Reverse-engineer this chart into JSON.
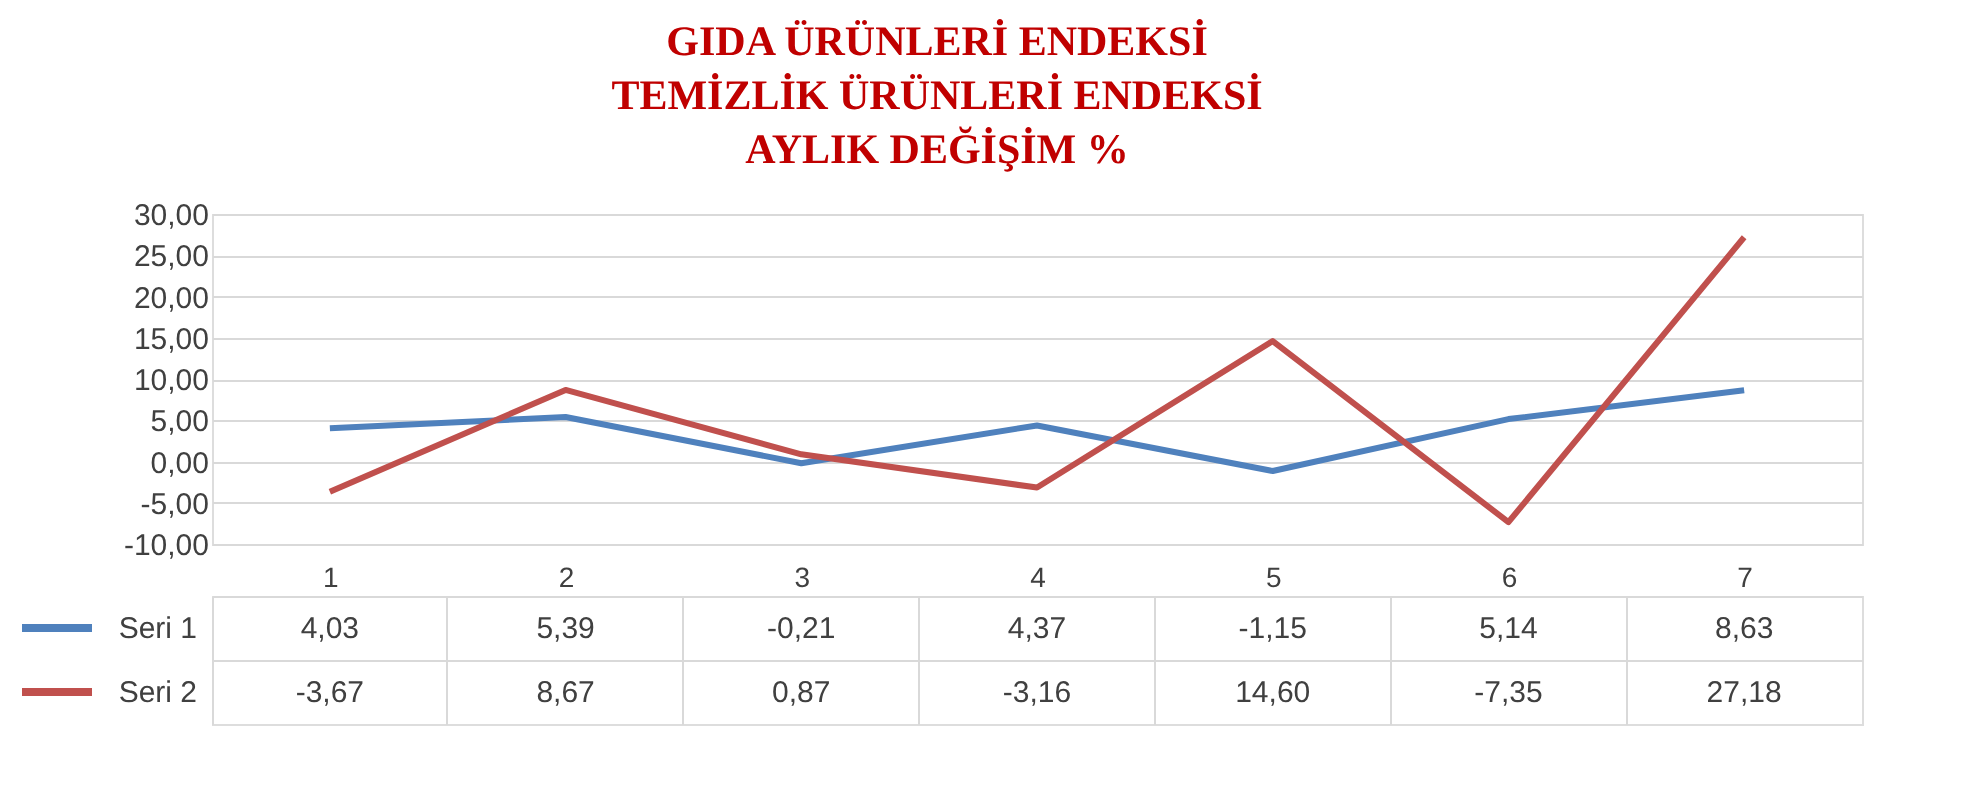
{
  "chart_data": {
    "type": "line",
    "title": [
      "GIDA ÜRÜNLERİ ENDEKSİ",
      "TEMİZLİK ÜRÜNLERİ ENDEKSİ",
      "AYLIK DEĞİŞİM %"
    ],
    "categories": [
      "1",
      "2",
      "3",
      "4",
      "5",
      "6",
      "7"
    ],
    "series": [
      {
        "name": "Seri 1",
        "color": "#4f81bd",
        "values": [
          4.03,
          5.39,
          -0.21,
          4.37,
          -1.15,
          5.14,
          8.63
        ],
        "value_labels": [
          "4,03",
          "5,39",
          "-0,21",
          "4,37",
          "-1,15",
          "5,14",
          "8,63"
        ]
      },
      {
        "name": "Seri 2",
        "color": "#c0504d",
        "values": [
          -3.67,
          8.67,
          0.87,
          -3.16,
          14.6,
          -7.35,
          27.18
        ],
        "value_labels": [
          "-3,67",
          "8,67",
          "0,87",
          "-3,16",
          "14,60",
          "-7,35",
          "27,18"
        ]
      }
    ],
    "ylim": [
      -10,
      30
    ],
    "yticks": [
      {
        "value": -10,
        "label": "-10,00"
      },
      {
        "value": -5,
        "label": "-5,00"
      },
      {
        "value": 0,
        "label": "0,00"
      },
      {
        "value": 5,
        "label": "5,00"
      },
      {
        "value": 10,
        "label": "10,00"
      },
      {
        "value": 15,
        "label": "15,00"
      },
      {
        "value": 20,
        "label": "20,00"
      },
      {
        "value": 25,
        "label": "25,00"
      },
      {
        "value": 30,
        "label": "30,00"
      }
    ],
    "grid": "y",
    "legend": "bottom"
  }
}
